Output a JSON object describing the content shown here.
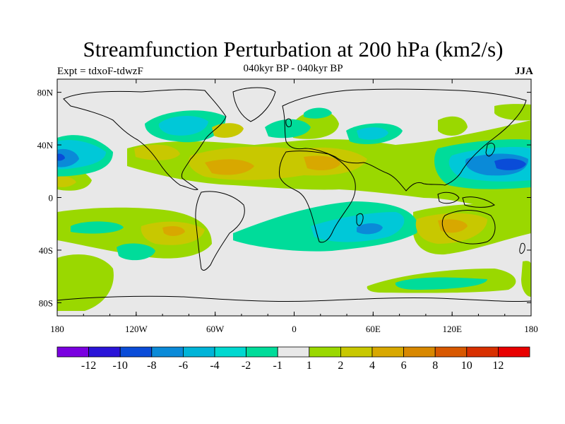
{
  "header": {
    "title": "Streamfunction Perturbation at 200 hPa (km2/s)",
    "subtitle": "040kyr BP - 040kyr BP",
    "left_label": "Expt = tdxoF-tdwzF",
    "right_label": "JJA"
  },
  "map": {
    "projection": "cylindrical equidistant",
    "lon_range": [
      -180,
      180
    ],
    "lat_range": [
      -90,
      90
    ],
    "coastlines": true,
    "x_ticks": [
      "180",
      "120W",
      "60W",
      "0",
      "60E",
      "120E",
      "180"
    ],
    "y_ticks": [
      "80N",
      "40N",
      "0",
      "40S",
      "80S"
    ]
  },
  "colorbar": {
    "labels": [
      "-12",
      "-10",
      "-8",
      "-6",
      "-4",
      "-2",
      "-1",
      "1",
      "2",
      "4",
      "6",
      "8",
      "10",
      "12"
    ],
    "colors": [
      "#7a00e0",
      "#2a14d8",
      "#0a4cd8",
      "#0a8ad8",
      "#00b4d8",
      "#00d8d0",
      "#00dc9a",
      "#e8e8e8",
      "#9ad800",
      "#c8c800",
      "#d8a800",
      "#d88800",
      "#d85800",
      "#d83000",
      "#e80000"
    ]
  }
}
